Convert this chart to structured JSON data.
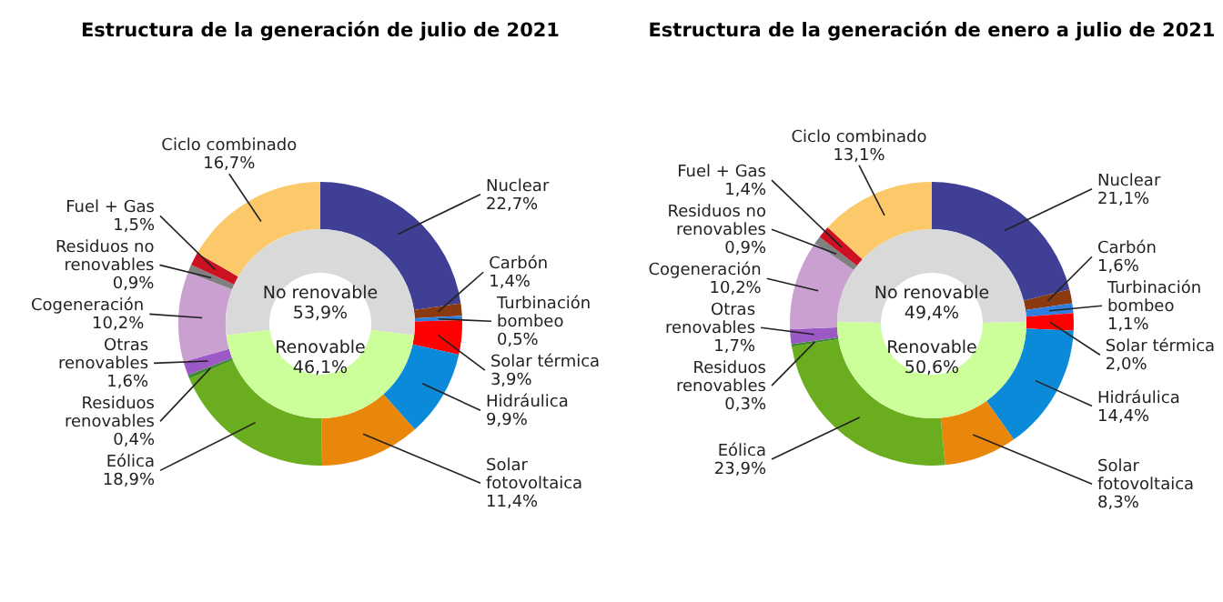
{
  "chart_data": [
    {
      "type": "donut",
      "title": "Estructura de la generación de julio de 2021",
      "categories": [
        "Nuclear",
        "Carbón",
        "Turbinación bombeo",
        "Solar térmica",
        "Hidráulica",
        "Solar fotovoltaica",
        "Eólica",
        "Residuos renovables",
        "Otras renovables",
        "Cogeneración",
        "Residuos no renovables",
        "Fuel + Gas",
        "Ciclo combinado"
      ],
      "values": [
        22.7,
        1.4,
        0.5,
        3.9,
        9.9,
        11.4,
        18.9,
        0.4,
        1.6,
        10.2,
        0.9,
        1.5,
        16.7
      ],
      "value_labels": [
        "22,7%",
        "1,4%",
        "0,5%",
        "3,9%",
        "9,9%",
        "11,4%",
        "18,9%",
        "0,4%",
        "1,6%",
        "10,2%",
        "0,9%",
        "1,5%",
        "16,7%"
      ],
      "colors": [
        "#3f3f95",
        "#8b3a10",
        "#2f7fe0",
        "#ff0000",
        "#0a8ad8",
        "#e8870a",
        "#6aad1e",
        "#3d8c2a",
        "#9b59c6",
        "#c9a0d0",
        "#808080",
        "#cc1122",
        "#fcc96a"
      ]
    },
    {
      "type": "donut",
      "categories": [
        "No renovable",
        "Renovable"
      ],
      "values": [
        53.9,
        46.1
      ],
      "value_labels": [
        "53,9%",
        "46,1%"
      ],
      "colors": [
        "#d9d9d9",
        "#ccff99"
      ]
    },
    {
      "type": "donut",
      "title": "Estructura de la generación de enero a julio de 2021",
      "categories": [
        "Nuclear",
        "Carbón",
        "Turbinación bombeo",
        "Solar térmica",
        "Hidráulica",
        "Solar fotovoltaica",
        "Eólica",
        "Residuos renovables",
        "Otras renovables",
        "Cogeneración",
        "Residuos no renovables",
        "Fuel + Gas",
        "Ciclo combinado"
      ],
      "values": [
        21.1,
        1.6,
        1.1,
        2.0,
        14.4,
        8.3,
        23.9,
        0.3,
        1.7,
        10.2,
        0.9,
        1.4,
        13.1
      ],
      "value_labels": [
        "21,1%",
        "1,6%",
        "1,1%",
        "2,0%",
        "14,4%",
        "8,3%",
        "23,9%",
        "0,3%",
        "1,7%",
        "10,2%",
        "0,9%",
        "1,4%",
        "13,1%"
      ],
      "colors": [
        "#3f3f95",
        "#8b3a10",
        "#2f7fe0",
        "#ff0000",
        "#0a8ad8",
        "#e8870a",
        "#6aad1e",
        "#3d8c2a",
        "#9b59c6",
        "#c9a0d0",
        "#808080",
        "#cc1122",
        "#fcc96a"
      ]
    },
    {
      "type": "donut",
      "categories": [
        "No renovable",
        "Renovable"
      ],
      "values": [
        49.4,
        50.6
      ],
      "value_labels": [
        "49,4%",
        "50,6%"
      ],
      "colors": [
        "#d9d9d9",
        "#ccff99"
      ]
    }
  ]
}
